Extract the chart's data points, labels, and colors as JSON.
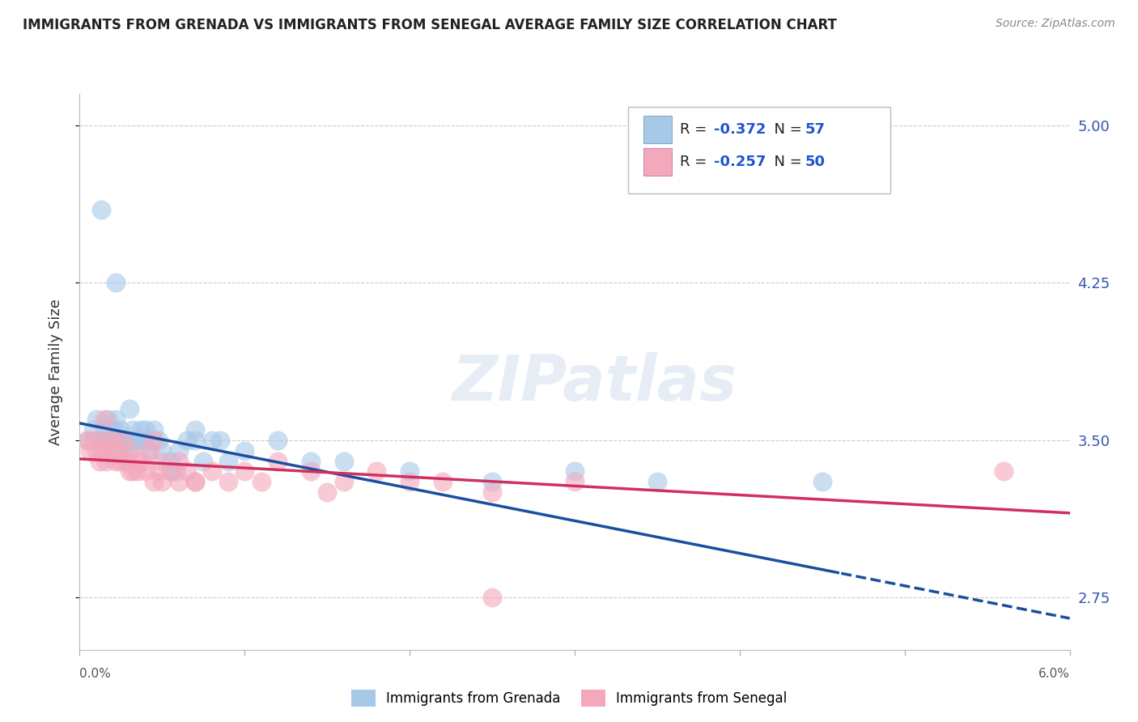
{
  "title": "IMMIGRANTS FROM GRENADA VS IMMIGRANTS FROM SENEGAL AVERAGE FAMILY SIZE CORRELATION CHART",
  "source": "Source: ZipAtlas.com",
  "ylabel": "Average Family Size",
  "xmin": 0.0,
  "xmax": 6.0,
  "yticks": [
    2.75,
    3.5,
    4.25,
    5.0
  ],
  "ymin": 2.5,
  "ymax": 5.15,
  "grenada_color": "#a8c8e8",
  "senegal_color": "#f4a8bc",
  "grenada_line_color": "#1a4fa0",
  "senegal_line_color": "#d03060",
  "grenada_R": -0.372,
  "grenada_N": 57,
  "senegal_R": -0.257,
  "senegal_N": 50,
  "grenada_label": "Immigrants from Grenada",
  "senegal_label": "Immigrants from Senegal",
  "grenada_x": [
    0.05,
    0.08,
    0.1,
    0.12,
    0.13,
    0.14,
    0.15,
    0.16,
    0.17,
    0.18,
    0.19,
    0.2,
    0.21,
    0.22,
    0.23,
    0.24,
    0.25,
    0.26,
    0.27,
    0.28,
    0.29,
    0.3,
    0.31,
    0.32,
    0.33,
    0.35,
    0.37,
    0.38,
    0.4,
    0.42,
    0.45,
    0.48,
    0.5,
    0.55,
    0.58,
    0.6,
    0.65,
    0.7,
    0.75,
    0.8,
    0.85,
    0.9,
    1.0,
    1.2,
    1.4,
    1.6,
    2.0,
    2.5,
    3.0,
    3.5,
    0.13,
    0.22,
    0.3,
    0.4,
    0.55,
    0.7,
    4.5
  ],
  "grenada_y": [
    3.5,
    3.55,
    3.6,
    3.5,
    3.45,
    3.5,
    3.55,
    3.5,
    3.6,
    3.5,
    3.45,
    3.5,
    3.55,
    3.6,
    3.5,
    3.5,
    3.55,
    3.5,
    3.45,
    3.5,
    3.5,
    3.45,
    3.5,
    3.55,
    3.5,
    3.5,
    3.55,
    3.5,
    3.5,
    3.45,
    3.55,
    3.5,
    3.45,
    3.4,
    3.35,
    3.45,
    3.5,
    3.5,
    3.4,
    3.5,
    3.5,
    3.4,
    3.45,
    3.5,
    3.4,
    3.4,
    3.35,
    3.3,
    3.35,
    3.3,
    4.6,
    4.25,
    3.65,
    3.55,
    3.35,
    3.55,
    3.3
  ],
  "senegal_x": [
    0.04,
    0.06,
    0.08,
    0.1,
    0.12,
    0.14,
    0.15,
    0.16,
    0.18,
    0.2,
    0.22,
    0.24,
    0.26,
    0.28,
    0.3,
    0.32,
    0.35,
    0.38,
    0.4,
    0.42,
    0.45,
    0.48,
    0.5,
    0.55,
    0.6,
    0.65,
    0.7,
    0.8,
    0.9,
    1.0,
    1.1,
    1.2,
    1.4,
    1.6,
    1.8,
    2.0,
    2.2,
    2.5,
    3.0,
    0.15,
    0.25,
    0.35,
    0.5,
    0.7,
    1.5,
    2.5,
    0.3,
    0.45,
    5.6,
    0.6
  ],
  "senegal_y": [
    3.5,
    3.45,
    3.5,
    3.45,
    3.4,
    3.45,
    3.5,
    3.4,
    3.45,
    3.5,
    3.4,
    3.45,
    3.5,
    3.4,
    3.45,
    3.35,
    3.4,
    3.4,
    3.35,
    3.45,
    3.5,
    3.35,
    3.4,
    3.35,
    3.4,
    3.35,
    3.3,
    3.35,
    3.3,
    3.35,
    3.3,
    3.4,
    3.35,
    3.3,
    3.35,
    3.3,
    3.3,
    3.25,
    3.3,
    3.6,
    3.4,
    3.35,
    3.3,
    3.3,
    3.25,
    2.75,
    3.35,
    3.3,
    3.35,
    3.3
  ]
}
